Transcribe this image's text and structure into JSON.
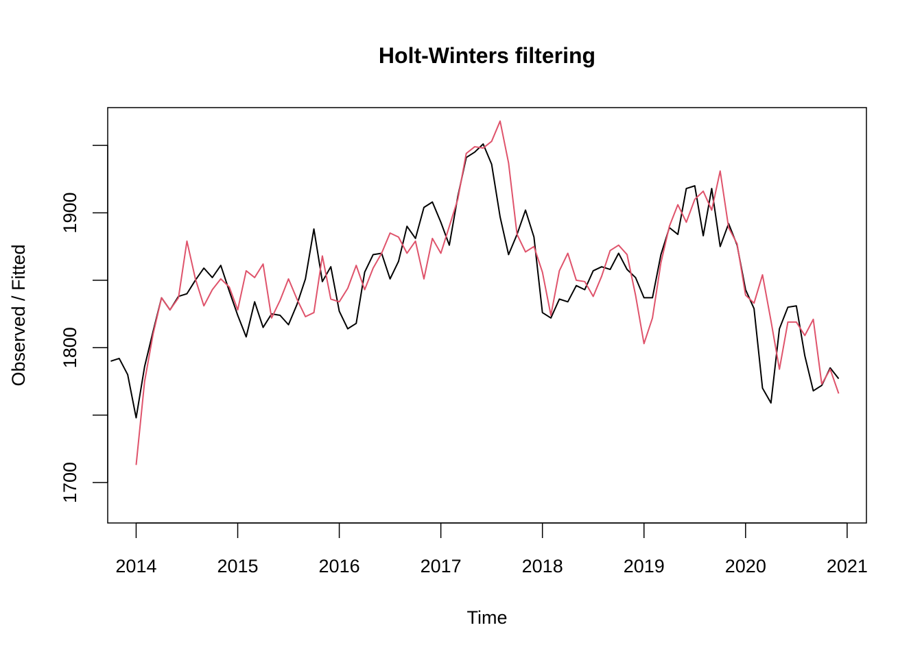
{
  "chart_data": {
    "type": "line",
    "title": "Holt-Winters filtering",
    "xlabel": "Time",
    "ylabel": "Observed / Fitted",
    "xlim": [
      2013.72,
      2021.19
    ],
    "ylim": [
      1670,
      1978
    ],
    "x_ticks": [
      2014,
      2015,
      2016,
      2017,
      2018,
      2019,
      2020,
      2021
    ],
    "x_tick_labels": [
      "2014",
      "2015",
      "2016",
      "2017",
      "2018",
      "2019",
      "2020",
      "2021"
    ],
    "y_ticks": [
      1700,
      1750,
      1800,
      1850,
      1900,
      1950
    ],
    "y_tick_labels": [
      "1700",
      "",
      "1800",
      "",
      "1900",
      ""
    ],
    "grid": false,
    "x_start": 2013.75,
    "x_step": 0.0833333,
    "series": [
      {
        "role": "observed",
        "color": "#000000",
        "start_index": 0,
        "values": [
          1790,
          1792,
          1780,
          1748,
          1786,
          1812,
          1837,
          1828,
          1838,
          1840,
          1850,
          1859,
          1852,
          1861,
          1842,
          1824,
          1808,
          1834,
          1815,
          1825,
          1824,
          1817,
          1832,
          1851,
          1888,
          1849,
          1860,
          1827,
          1814,
          1818,
          1856,
          1869,
          1870,
          1851,
          1864,
          1890,
          1881,
          1904,
          1908,
          1893,
          1876,
          1912,
          1941,
          1945,
          1951,
          1936,
          1897,
          1869,
          1884,
          1902,
          1882,
          1826,
          1822,
          1836,
          1834,
          1846,
          1843,
          1857,
          1860,
          1858,
          1870,
          1858,
          1852,
          1837,
          1837,
          1869,
          1889,
          1884,
          1918,
          1920,
          1883,
          1918,
          1875,
          1892,
          1876,
          1843,
          1829,
          1770,
          1759,
          1814,
          1830,
          1831,
          1794,
          1768,
          1772,
          1785,
          1777
        ]
      },
      {
        "role": "fitted",
        "color": "#df536b",
        "start_index": 3,
        "values": [
          1713,
          1775,
          1810,
          1837,
          1828,
          1837,
          1879,
          1851,
          1831,
          1843,
          1851,
          1845,
          1828,
          1857,
          1852,
          1862,
          1822,
          1835,
          1851,
          1836,
          1823,
          1826,
          1868,
          1836,
          1834,
          1844,
          1861,
          1843,
          1859,
          1870,
          1885,
          1882,
          1870,
          1879,
          1851,
          1881,
          1870,
          1890,
          1910,
          1944,
          1949,
          1948,
          1953,
          1968,
          1937,
          1884,
          1871,
          1875,
          1856,
          1824,
          1857,
          1870,
          1850,
          1849,
          1838,
          1853,
          1872,
          1876,
          1869,
          1839,
          1803,
          1822,
          1863,
          1890,
          1906,
          1893,
          1910,
          1916,
          1902,
          1931,
          1889,
          1877,
          1839,
          1833,
          1854,
          1820,
          1784,
          1819,
          1819,
          1809,
          1821,
          1773,
          1784,
          1766
        ]
      }
    ]
  }
}
